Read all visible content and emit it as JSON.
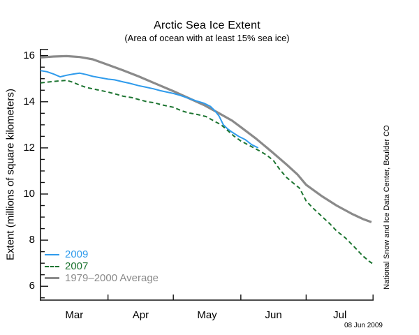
{
  "chart_data": {
    "type": "line",
    "title": "Arctic Sea Ice Extent",
    "subtitle": "(Area of ocean with at least 15% sea ice)",
    "ylabel": "Extent (millions of square kilometers)",
    "xlabel": "",
    "side_text": "National Snow and Ice Data Center, Boulder CO",
    "date_label": "08 Jun 2009",
    "grid": false,
    "legend_position": "lower-left",
    "ylim": [
      5.4,
      16.3
    ],
    "x_unit": "days since Mar 1",
    "x_axis": {
      "tick_days": [
        31,
        61,
        92,
        122,
        153
      ],
      "month_labels": [
        {
          "label": "Mar",
          "day": 15.5
        },
        {
          "label": "Apr",
          "day": 46
        },
        {
          "label": "May",
          "day": 76.5
        },
        {
          "label": "Jun",
          "day": 107
        },
        {
          "label": "Jul",
          "day": 137.5
        }
      ]
    },
    "y_axis": {
      "ticks": [
        6,
        8,
        10,
        12,
        14,
        16
      ],
      "minor_step": 0.5
    },
    "series": [
      {
        "name": "1979–2000 Average",
        "color": "#8a8a8a",
        "style": "solid",
        "width": 3.2,
        "points": [
          [
            0,
            15.92
          ],
          [
            6,
            15.96
          ],
          [
            12,
            15.98
          ],
          [
            18,
            15.94
          ],
          [
            24,
            15.84
          ],
          [
            31,
            15.6
          ],
          [
            38,
            15.36
          ],
          [
            45,
            15.1
          ],
          [
            52,
            14.82
          ],
          [
            61,
            14.46
          ],
          [
            68,
            14.16
          ],
          [
            75,
            13.86
          ],
          [
            82,
            13.5
          ],
          [
            88,
            13.18
          ],
          [
            92,
            12.9
          ],
          [
            99,
            12.4
          ],
          [
            106,
            11.85
          ],
          [
            113,
            11.28
          ],
          [
            118,
            10.85
          ],
          [
            122,
            10.4
          ],
          [
            129,
            9.92
          ],
          [
            136,
            9.5
          ],
          [
            143,
            9.14
          ],
          [
            148,
            8.92
          ],
          [
            152,
            8.78
          ]
        ]
      },
      {
        "name": "2009",
        "color": "#2f9bec",
        "style": "solid",
        "width": 2,
        "points": [
          [
            0,
            15.35
          ],
          [
            3,
            15.3
          ],
          [
            6,
            15.2
          ],
          [
            9,
            15.08
          ],
          [
            12,
            15.15
          ],
          [
            15,
            15.2
          ],
          [
            18,
            15.24
          ],
          [
            21,
            15.18
          ],
          [
            24,
            15.1
          ],
          [
            27,
            15.05
          ],
          [
            31,
            14.98
          ],
          [
            34,
            14.95
          ],
          [
            38,
            14.86
          ],
          [
            41,
            14.8
          ],
          [
            45,
            14.7
          ],
          [
            48,
            14.64
          ],
          [
            52,
            14.56
          ],
          [
            55,
            14.48
          ],
          [
            58,
            14.42
          ],
          [
            61,
            14.36
          ],
          [
            64,
            14.28
          ],
          [
            68,
            14.15
          ],
          [
            71,
            14.05
          ],
          [
            75,
            13.94
          ],
          [
            78,
            13.8
          ],
          [
            80,
            13.62
          ],
          [
            82,
            13.38
          ],
          [
            84,
            13.0
          ],
          [
            86,
            12.82
          ],
          [
            88,
            12.68
          ],
          [
            91,
            12.5
          ],
          [
            94,
            12.36
          ],
          [
            97,
            12.14
          ],
          [
            100,
            12.0
          ]
        ]
      },
      {
        "name": "2007",
        "color": "#1c7430",
        "style": "dashed",
        "width": 2,
        "points": [
          [
            0,
            14.82
          ],
          [
            4,
            14.86
          ],
          [
            8,
            14.9
          ],
          [
            12,
            14.93
          ],
          [
            15,
            14.84
          ],
          [
            18,
            14.72
          ],
          [
            21,
            14.62
          ],
          [
            26,
            14.52
          ],
          [
            31,
            14.42
          ],
          [
            35,
            14.32
          ],
          [
            38,
            14.24
          ],
          [
            42,
            14.18
          ],
          [
            45,
            14.1
          ],
          [
            49,
            14.0
          ],
          [
            52,
            13.96
          ],
          [
            56,
            13.86
          ],
          [
            61,
            13.76
          ],
          [
            65,
            13.6
          ],
          [
            68,
            13.52
          ],
          [
            72,
            13.45
          ],
          [
            76,
            13.36
          ],
          [
            80,
            13.15
          ],
          [
            83,
            13.0
          ],
          [
            86,
            12.75
          ],
          [
            89,
            12.5
          ],
          [
            92,
            12.3
          ],
          [
            95,
            12.15
          ],
          [
            98,
            12.0
          ],
          [
            101,
            11.85
          ],
          [
            104,
            11.68
          ],
          [
            107,
            11.45
          ],
          [
            110,
            11.05
          ],
          [
            113,
            10.72
          ],
          [
            116,
            10.48
          ],
          [
            119,
            10.25
          ],
          [
            122,
            9.7
          ],
          [
            125,
            9.4
          ],
          [
            129,
            9.05
          ],
          [
            133,
            8.7
          ],
          [
            136,
            8.4
          ],
          [
            140,
            8.1
          ],
          [
            144,
            7.72
          ],
          [
            148,
            7.32
          ],
          [
            151,
            7.08
          ],
          [
            153,
            6.95
          ]
        ]
      }
    ]
  }
}
